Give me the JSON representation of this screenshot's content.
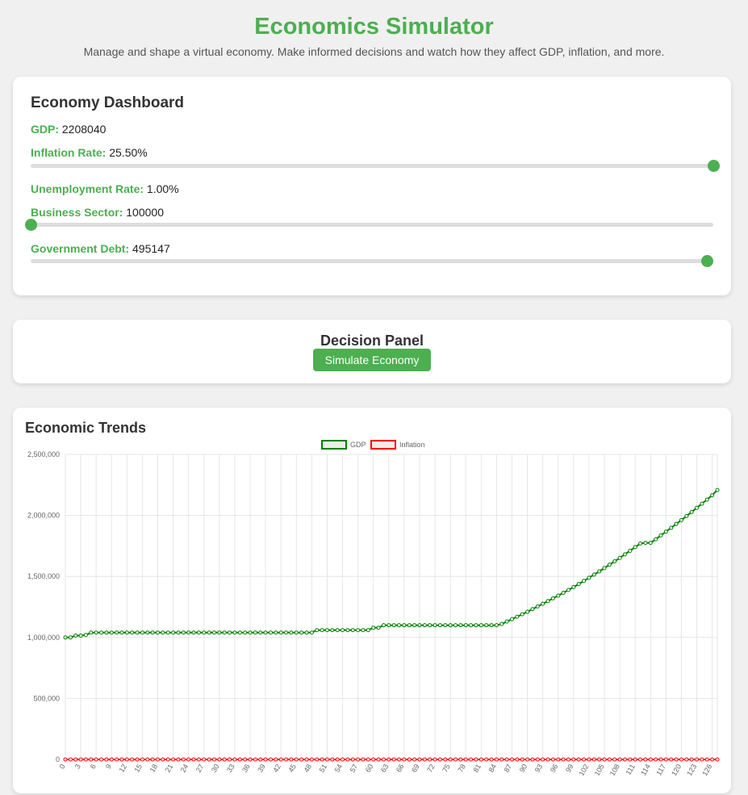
{
  "header": {
    "title": "Economics Simulator",
    "subtitle": "Manage and shape a virtual economy. Make informed decisions and watch how they affect GDP, inflation, and more."
  },
  "dashboard": {
    "title": "Economy Dashboard",
    "gdp": {
      "label": "GDP:",
      "value": "2208040"
    },
    "inflation": {
      "label": "Inflation Rate:",
      "value": "25.50%",
      "slider_fraction": 1.0
    },
    "unemployment": {
      "label": "Unemployment Rate:",
      "value": "1.00%"
    },
    "business": {
      "label": "Business Sector:",
      "value": "100000",
      "slider_fraction": 0.0
    },
    "debt": {
      "label": "Government Debt:",
      "value": "495147",
      "slider_fraction": 0.99
    }
  },
  "decision": {
    "title": "Decision Panel",
    "simulate_label": "Simulate Economy"
  },
  "colors": {
    "accent": "#4caf50",
    "gdp_line": "#008000",
    "inflation_line": "#ff0000"
  },
  "trends": {
    "title": "Economic Trends"
  },
  "chart_data": {
    "type": "line",
    "ylim": [
      0,
      2500000
    ],
    "y_ticks": [
      0,
      500000,
      1000000,
      1500000,
      2000000,
      2500000
    ],
    "x_tick_step": 3,
    "legend_position": "top",
    "grid": true,
    "series": [
      {
        "name": "GDP",
        "color": "#008000",
        "values": [
          1000000,
          1000000,
          1015000,
          1015000,
          1020000,
          1040000,
          1040000,
          1040000,
          1040000,
          1040000,
          1040000,
          1040000,
          1040000,
          1040000,
          1040000,
          1040000,
          1040000,
          1040000,
          1040000,
          1040000,
          1040000,
          1040000,
          1040000,
          1040000,
          1040000,
          1040000,
          1040000,
          1040000,
          1040000,
          1040000,
          1040000,
          1040000,
          1040000,
          1040000,
          1040000,
          1040000,
          1040000,
          1040000,
          1040000,
          1040000,
          1040000,
          1040000,
          1040000,
          1040000,
          1040000,
          1040000,
          1040000,
          1040000,
          1040000,
          1060000,
          1060000,
          1060000,
          1060000,
          1060000,
          1060000,
          1060000,
          1060000,
          1060000,
          1060000,
          1060000,
          1080000,
          1080000,
          1100000,
          1100000,
          1100000,
          1100000,
          1100000,
          1100000,
          1100000,
          1100000,
          1100000,
          1100000,
          1100000,
          1100000,
          1100000,
          1100000,
          1100000,
          1100000,
          1100000,
          1100000,
          1100000,
          1100000,
          1100000,
          1100000,
          1100000,
          1110000,
          1130000,
          1150000,
          1170000,
          1190000,
          1210000,
          1232000,
          1254000,
          1276000,
          1298000,
          1320000,
          1343000,
          1366000,
          1389000,
          1413000,
          1438000,
          1463000,
          1489000,
          1515000,
          1541000,
          1568000,
          1596000,
          1624000,
          1652000,
          1681000,
          1710000,
          1740000,
          1770000,
          1775000,
          1775000,
          1805000,
          1836000,
          1867000,
          1898000,
          1930000,
          1962000,
          1995000,
          2028000,
          2062000,
          2096000,
          2130000,
          2165000,
          2208040
        ]
      },
      {
        "name": "Inflation",
        "color": "#ff0000",
        "values": "zeros"
      }
    ]
  }
}
